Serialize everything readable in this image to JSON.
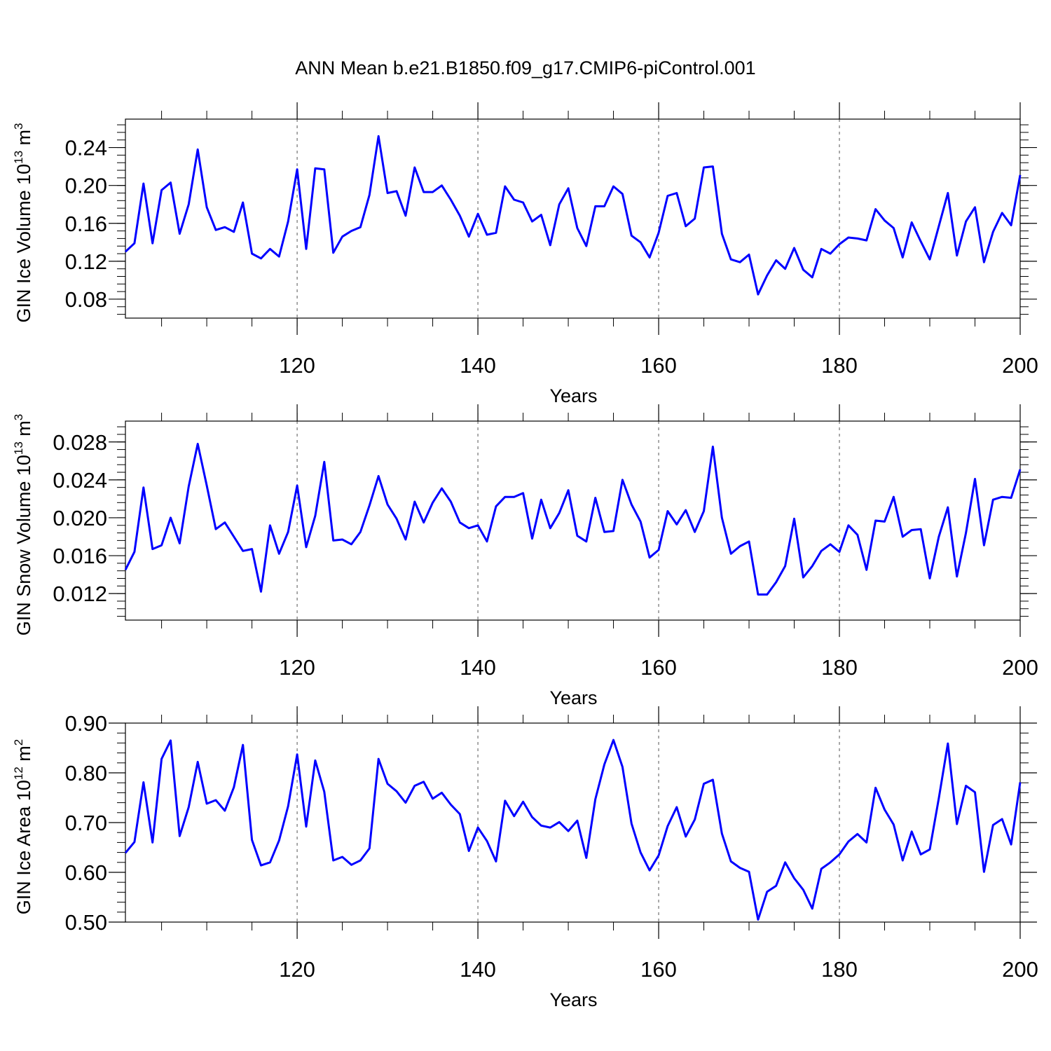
{
  "title": "ANN Mean b.e21.B1850.f09_g17.CMIP6-piControl.001",
  "colors": {
    "line": "#0000ff",
    "axis": "#000000",
    "grid": "#555555",
    "background": "#ffffff"
  },
  "chart_data": [
    {
      "type": "line",
      "name": "ice-volume",
      "ylabel": "GIN Ice Volume 10",
      "ylabel_exp": "13",
      "ylabel_unit": "m",
      "ylabel_unit_exp": "3",
      "xlabel": "Years",
      "xlim": [
        101,
        200
      ],
      "ylim": [
        0.06,
        0.27
      ],
      "x_ticks": [
        120,
        140,
        160,
        180,
        200
      ],
      "x_tick_labels": [
        "120",
        "140",
        "160",
        "180",
        "200"
      ],
      "y_ticks": [
        0.08,
        0.12,
        0.16,
        0.2,
        0.24
      ],
      "y_tick_labels": [
        "0.08",
        "0.12",
        "0.16",
        "0.20",
        "0.24"
      ],
      "y_minor_step": 0.008,
      "grid_x": [
        120,
        140,
        160,
        180
      ],
      "x_start": 101,
      "values": [
        0.13,
        0.139,
        0.202,
        0.139,
        0.195,
        0.203,
        0.149,
        0.18,
        0.238,
        0.177,
        0.153,
        0.156,
        0.151,
        0.182,
        0.128,
        0.123,
        0.133,
        0.125,
        0.162,
        0.217,
        0.133,
        0.218,
        0.217,
        0.129,
        0.146,
        0.152,
        0.156,
        0.19,
        0.252,
        0.192,
        0.194,
        0.168,
        0.219,
        0.193,
        0.193,
        0.2,
        0.185,
        0.168,
        0.146,
        0.17,
        0.148,
        0.15,
        0.199,
        0.185,
        0.182,
        0.162,
        0.169,
        0.137,
        0.18,
        0.197,
        0.155,
        0.136,
        0.178,
        0.178,
        0.199,
        0.191,
        0.147,
        0.14,
        0.124,
        0.15,
        0.189,
        0.192,
        0.157,
        0.165,
        0.219,
        0.22,
        0.149,
        0.122,
        0.119,
        0.127,
        0.085,
        0.105,
        0.121,
        0.112,
        0.134,
        0.111,
        0.103,
        0.133,
        0.128,
        0.138,
        0.145,
        0.144,
        0.142,
        0.175,
        0.163,
        0.155,
        0.124,
        0.161,
        0.141,
        0.122,
        0.157,
        0.192,
        0.126,
        0.162,
        0.177,
        0.119,
        0.151,
        0.171,
        0.158,
        0.211
      ]
    },
    {
      "type": "line",
      "name": "snow-volume",
      "ylabel": "GIN Snow Volume 10",
      "ylabel_exp": "13",
      "ylabel_unit": "m",
      "ylabel_unit_exp": "3",
      "xlabel": "Years",
      "xlim": [
        101,
        200
      ],
      "ylim": [
        0.0092,
        0.0302
      ],
      "x_ticks": [
        120,
        140,
        160,
        180,
        200
      ],
      "x_tick_labels": [
        "120",
        "140",
        "160",
        "180",
        "200"
      ],
      "y_ticks": [
        0.012,
        0.016,
        0.02,
        0.024,
        0.028
      ],
      "y_tick_labels": [
        "0.012",
        "0.016",
        "0.020",
        "0.024",
        "0.028"
      ],
      "y_minor_step": 0.0008,
      "grid_x": [
        120,
        140,
        160,
        180
      ],
      "x_start": 101,
      "values": [
        0.0145,
        0.0164,
        0.0232,
        0.0167,
        0.0171,
        0.02,
        0.0173,
        0.0233,
        0.0278,
        0.0234,
        0.0188,
        0.0195,
        0.018,
        0.0165,
        0.0167,
        0.0122,
        0.0192,
        0.0162,
        0.0185,
        0.0234,
        0.0169,
        0.0202,
        0.0259,
        0.0176,
        0.0177,
        0.0172,
        0.0185,
        0.0213,
        0.0244,
        0.0214,
        0.0199,
        0.0177,
        0.0217,
        0.0195,
        0.0216,
        0.0231,
        0.0217,
        0.0195,
        0.0189,
        0.0192,
        0.0175,
        0.0212,
        0.0222,
        0.0222,
        0.0226,
        0.0178,
        0.0219,
        0.0189,
        0.0205,
        0.0229,
        0.0181,
        0.0175,
        0.0221,
        0.0185,
        0.0186,
        0.024,
        0.0214,
        0.0196,
        0.0158,
        0.0166,
        0.0207,
        0.0193,
        0.0208,
        0.0185,
        0.0207,
        0.0275,
        0.02,
        0.0162,
        0.017,
        0.0175,
        0.0119,
        0.0119,
        0.0132,
        0.0149,
        0.0199,
        0.0137,
        0.0149,
        0.0165,
        0.0172,
        0.0164,
        0.0192,
        0.0182,
        0.0145,
        0.0197,
        0.0196,
        0.0222,
        0.018,
        0.0187,
        0.0188,
        0.0136,
        0.018,
        0.0211,
        0.0138,
        0.0184,
        0.0241,
        0.0171,
        0.0219,
        0.0222,
        0.0221,
        0.0251
      ]
    },
    {
      "type": "line",
      "name": "ice-area",
      "ylabel": "GIN Ice Area 10",
      "ylabel_exp": "12",
      "ylabel_unit": "m",
      "ylabel_unit_exp": "2",
      "xlabel": "Years",
      "xlim": [
        101,
        200
      ],
      "ylim": [
        0.5,
        0.9
      ],
      "x_ticks": [
        120,
        140,
        160,
        180,
        200
      ],
      "x_tick_labels": [
        "120",
        "140",
        "160",
        "180",
        "200"
      ],
      "y_ticks": [
        0.5,
        0.6,
        0.7,
        0.8,
        0.9
      ],
      "y_tick_labels": [
        "0.50",
        "0.60",
        "0.70",
        "0.80",
        "0.90"
      ],
      "y_minor_step": 0.02,
      "grid_x": [
        120,
        140,
        160,
        180
      ],
      "x_start": 101,
      "values": [
        0.639,
        0.661,
        0.781,
        0.66,
        0.828,
        0.865,
        0.673,
        0.731,
        0.822,
        0.738,
        0.745,
        0.724,
        0.771,
        0.856,
        0.665,
        0.614,
        0.62,
        0.664,
        0.733,
        0.837,
        0.692,
        0.825,
        0.762,
        0.624,
        0.631,
        0.615,
        0.624,
        0.648,
        0.828,
        0.778,
        0.763,
        0.74,
        0.774,
        0.782,
        0.748,
        0.76,
        0.736,
        0.717,
        0.643,
        0.69,
        0.663,
        0.622,
        0.744,
        0.713,
        0.742,
        0.711,
        0.694,
        0.69,
        0.701,
        0.683,
        0.704,
        0.629,
        0.747,
        0.817,
        0.866,
        0.812,
        0.698,
        0.64,
        0.604,
        0.634,
        0.693,
        0.731,
        0.672,
        0.706,
        0.778,
        0.786,
        0.678,
        0.622,
        0.609,
        0.601,
        0.505,
        0.561,
        0.573,
        0.62,
        0.588,
        0.565,
        0.527,
        0.607,
        0.62,
        0.636,
        0.662,
        0.677,
        0.66,
        0.77,
        0.726,
        0.696,
        0.624,
        0.682,
        0.636,
        0.646,
        0.749,
        0.859,
        0.697,
        0.774,
        0.761,
        0.601,
        0.695,
        0.707,
        0.656,
        0.781
      ]
    }
  ]
}
